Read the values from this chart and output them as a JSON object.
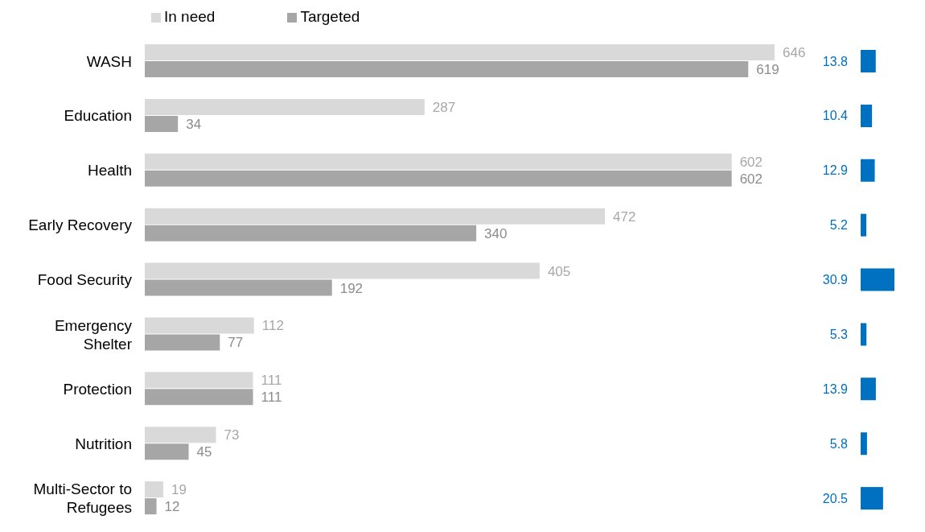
{
  "chart_data": [
    {
      "type": "bar",
      "orientation": "horizontal",
      "categories": [
        "WASH",
        "Education",
        "Health",
        "Early Recovery",
        "Food Security",
        "Emergency Shelter",
        "Protection",
        "Nutrition",
        "Multi-Sector to Refugees"
      ],
      "series": [
        {
          "name": "In need",
          "color": "#d9d9d9",
          "values": [
            646,
            287,
            602,
            472,
            405,
            112,
            111,
            73,
            19
          ]
        },
        {
          "name": "Targeted",
          "color": "#a6a6a6",
          "values": [
            619,
            34,
            602,
            340,
            192,
            77,
            111,
            45,
            12
          ]
        }
      ],
      "data_labels": true,
      "legend": "top left",
      "tick_labels": "y"
    },
    {
      "type": "bar",
      "orientation": "horizontal",
      "categories": [
        null,
        null,
        null,
        null,
        null,
        null,
        null,
        null,
        null
      ],
      "series": [
        {
          "color": "#0070c0",
          "values": [
            13.8,
            10.4,
            12.9,
            5.2,
            30.9,
            5.3,
            13.9,
            5.8,
            20.5
          ]
        }
      ],
      "data_labels": true,
      "tick_labels": false
    }
  ]
}
